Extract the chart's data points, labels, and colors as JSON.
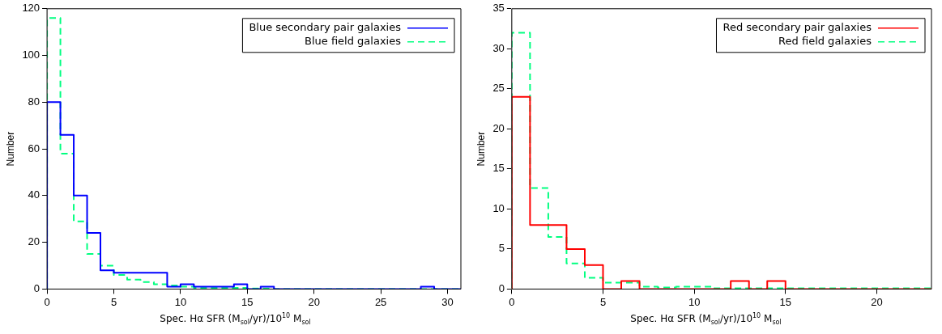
{
  "chart_data": [
    {
      "type": "histogram",
      "xlabel": "Spec. Hα SFR (M$_{sol}$/yr)/10$^{10}$ M$_{sol}$",
      "ylabel": "Number",
      "bins": [
        0,
        1,
        2,
        3,
        4,
        5,
        6,
        7,
        8,
        9,
        10,
        11,
        12,
        13,
        14,
        15,
        16,
        17,
        18,
        19,
        20,
        21,
        22,
        23,
        24,
        25,
        26,
        27,
        28,
        29,
        30,
        31
      ],
      "series": [
        {
          "name": "Blue secondary pair galaxies",
          "color": "#0000ff",
          "line_style": "solid",
          "values": [
            80,
            66,
            40,
            24,
            8,
            7,
            7,
            7,
            7,
            1,
            2,
            1,
            1,
            1,
            2,
            0,
            1,
            0,
            0,
            0,
            0,
            0,
            0,
            0,
            0,
            0,
            0,
            0,
            1,
            0,
            0
          ]
        },
        {
          "name": "Blue field galaxies",
          "color": "#00ff80",
          "line_style": "dashed",
          "values": [
            116,
            58,
            29,
            15,
            10,
            6,
            4,
            3,
            2,
            1.5,
            1,
            0.5,
            0.5,
            0.5,
            0.5,
            0.2,
            0.2,
            0,
            0,
            0,
            0,
            0,
            0,
            0,
            0,
            0,
            0,
            0,
            0,
            0,
            0
          ]
        }
      ],
      "xlim": [
        0,
        31
      ],
      "xticks": [
        0,
        5,
        10,
        15,
        20,
        25,
        30
      ],
      "ylim": [
        0,
        120
      ],
      "yticks": [
        0,
        20,
        40,
        60,
        80,
        100,
        120
      ],
      "legend": "top right",
      "grid": false
    },
    {
      "type": "histogram",
      "xlabel": "Spec. Hα SFR (M$_{sol}$/yr)/10$^{10}$ M$_{sol}$",
      "ylabel": "Number",
      "bins": [
        0,
        1,
        2,
        3,
        4,
        5,
        6,
        7,
        8,
        9,
        10,
        11,
        12,
        13,
        14,
        15,
        16,
        17,
        18,
        19,
        20,
        21,
        22,
        23
      ],
      "series": [
        {
          "name": "Red secondary pair galaxies",
          "color": "#ff0000",
          "line_style": "solid",
          "values": [
            24,
            8,
            8,
            5,
            3,
            0,
            1,
            0,
            0,
            0,
            0,
            0,
            1,
            0,
            1,
            0,
            0,
            0,
            0,
            0,
            0,
            0,
            0
          ]
        },
        {
          "name": "Red field galaxies",
          "color": "#00ff80",
          "line_style": "dashed",
          "values": [
            32,
            12.6,
            6.5,
            3.2,
            1.4,
            0.8,
            0.8,
            0.3,
            0.2,
            0.3,
            0.3,
            0.1,
            0.1,
            0.1,
            0.1,
            0.1,
            0.1,
            0.1,
            0.1,
            0.1,
            0.1,
            0.1,
            0.1
          ]
        }
      ],
      "xlim": [
        0,
        23
      ],
      "xticks": [
        0,
        5,
        10,
        15,
        20
      ],
      "ylim": [
        0,
        35
      ],
      "yticks": [
        0,
        5,
        10,
        15,
        20,
        25,
        30,
        35
      ],
      "legend": "top right",
      "grid": false
    }
  ]
}
